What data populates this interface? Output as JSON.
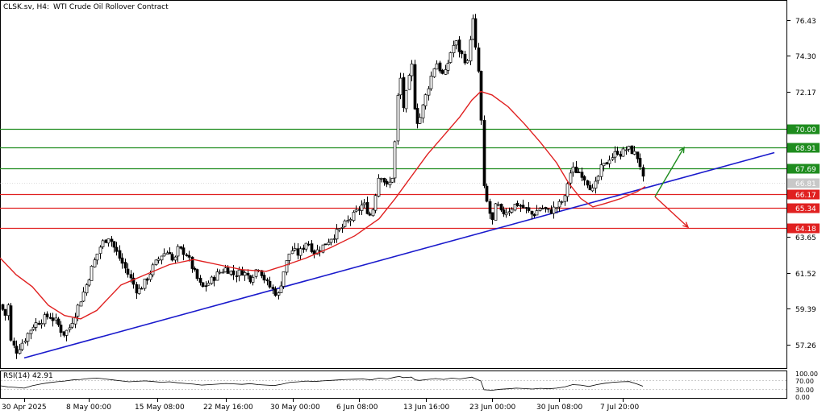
{
  "header": {
    "symbol": "CLSK.sv, H4:",
    "name": "WTI Crude Oil Rollover Contract"
  },
  "colors": {
    "bull_candle": "#ffffff",
    "bear_candle": "#000000",
    "ma": "#e02020",
    "trendline": "#1a1acc",
    "resistance": "#1e8c1e",
    "support": "#e02020",
    "arrow_up": "#1e8c1e",
    "arrow_down": "#e02020",
    "rsi": "#000000"
  },
  "price_axis": {
    "labels": [
      "76.43",
      "74.30",
      "72.17",
      "63.65",
      "61.52",
      "59.39",
      "57.26"
    ]
  },
  "levels": [
    {
      "price": 70.0,
      "label": "70.00",
      "color": "#1e8c1e",
      "kind": "resistance"
    },
    {
      "price": 68.91,
      "label": "68.91",
      "color": "#1e8c1e",
      "kind": "resistance"
    },
    {
      "price": 67.69,
      "label": "67.69",
      "color": "#1e8c1e",
      "kind": "resistance"
    },
    {
      "price": 66.17,
      "label": "66.17",
      "color": "#e02020",
      "kind": "support"
    },
    {
      "price": 65.34,
      "label": "65.34",
      "color": "#e02020",
      "kind": "support"
    },
    {
      "price": 64.18,
      "label": "64.18",
      "color": "#e02020",
      "kind": "support"
    }
  ],
  "current_price": {
    "label": "66.81"
  },
  "time_axis": {
    "labels": [
      "30 Apr 2025",
      "8 May 00:00",
      "15 May 08:00",
      "22 May 16:00",
      "30 May 00:00",
      "6 Jun 08:00",
      "13 Jun 16:00",
      "23 Jun 00:00",
      "30 Jun 08:00",
      "7 Jul 20:00"
    ]
  },
  "rsi": {
    "title": "RSI(14) 42.91",
    "axis_labels": [
      "100.00",
      "70.00",
      "30.00",
      "0.00"
    ]
  },
  "chart_data": {
    "type": "candlestick",
    "title": "CLSK.sv, H4: WTI Crude Oil Rollover Contract",
    "ylim": [
      55.9,
      77.5
    ],
    "x_index_range": [
      0,
      234
    ],
    "close_path": [
      [
        0,
        60.2
      ],
      [
        5,
        58.8
      ],
      [
        10,
        59.6
      ],
      [
        13,
        57.5
      ],
      [
        20,
        56.9
      ],
      [
        30,
        57.6
      ],
      [
        40,
        58.4
      ],
      [
        50,
        58.7
      ],
      [
        60,
        59.0
      ],
      [
        70,
        58.6
      ],
      [
        78,
        57.9
      ],
      [
        85,
        58.2
      ],
      [
        95,
        59.4
      ],
      [
        105,
        60.6
      ],
      [
        115,
        62.0
      ],
      [
        125,
        63.2
      ],
      [
        135,
        63.7
      ],
      [
        140,
        63.1
      ],
      [
        150,
        62.2
      ],
      [
        160,
        61.3
      ],
      [
        170,
        60.4
      ],
      [
        180,
        61.0
      ],
      [
        190,
        61.9
      ],
      [
        200,
        62.6
      ],
      [
        210,
        62.8
      ],
      [
        215,
        62.0
      ],
      [
        220,
        62.9
      ],
      [
        230,
        62.7
      ],
      [
        240,
        61.6
      ],
      [
        250,
        60.6
      ],
      [
        260,
        61.0
      ],
      [
        270,
        61.5
      ],
      [
        280,
        61.8
      ],
      [
        290,
        61.4
      ],
      [
        300,
        61.6
      ],
      [
        310,
        61.2
      ],
      [
        320,
        61.9
      ],
      [
        330,
        60.9
      ],
      [
        340,
        60.4
      ],
      [
        345,
        60.2
      ],
      [
        350,
        61.4
      ],
      [
        360,
        62.9
      ],
      [
        370,
        62.6
      ],
      [
        380,
        63.4
      ],
      [
        390,
        62.7
      ],
      [
        400,
        63.1
      ],
      [
        410,
        63.6
      ],
      [
        420,
        64.0
      ],
      [
        430,
        64.5
      ],
      [
        440,
        65.0
      ],
      [
        450,
        65.6
      ],
      [
        460,
        64.8
      ],
      [
        470,
        67.5
      ],
      [
        480,
        66.5
      ],
      [
        486,
        67.2
      ],
      [
        490,
        69.5
      ],
      [
        495,
        73.6
      ],
      [
        500,
        71.2
      ],
      [
        505,
        72.5
      ],
      [
        510,
        73.8
      ],
      [
        515,
        70.4
      ],
      [
        520,
        70.6
      ],
      [
        530,
        72.4
      ],
      [
        540,
        74.0
      ],
      [
        550,
        73.0
      ],
      [
        560,
        74.8
      ],
      [
        565,
        75.1
      ],
      [
        570,
        74.5
      ],
      [
        580,
        73.8
      ],
      [
        585,
        76.9
      ],
      [
        590,
        74.4
      ],
      [
        596,
        72.3
      ],
      [
        597,
        67.6
      ],
      [
        600,
        66.4
      ],
      [
        605,
        65.3
      ],
      [
        610,
        64.5
      ],
      [
        615,
        65.7
      ],
      [
        620,
        65.0
      ],
      [
        630,
        65.2
      ],
      [
        640,
        65.6
      ],
      [
        650,
        65.3
      ],
      [
        660,
        64.9
      ],
      [
        670,
        65.4
      ],
      [
        680,
        65.1
      ],
      [
        690,
        65.4
      ],
      [
        700,
        65.9
      ],
      [
        705,
        67.3
      ],
      [
        710,
        67.6
      ],
      [
        720,
        67.4
      ],
      [
        730,
        66.7
      ],
      [
        735,
        66.3
      ],
      [
        740,
        67.0
      ],
      [
        745,
        67.7
      ],
      [
        750,
        67.9
      ],
      [
        755,
        68.3
      ],
      [
        760,
        68.4
      ],
      [
        765,
        68.7
      ],
      [
        770,
        68.5
      ],
      [
        775,
        68.8
      ],
      [
        780,
        68.8
      ],
      [
        785,
        68.6
      ],
      [
        790,
        68.3
      ],
      [
        795,
        67.6
      ],
      [
        797,
        66.8
      ]
    ],
    "series": [
      {
        "name": "",
        "type": "ma",
        "points": [
          [
            0,
            62.4
          ],
          [
            20,
            61.4
          ],
          [
            40,
            60.7
          ],
          [
            60,
            59.6
          ],
          [
            80,
            59.0
          ],
          [
            100,
            58.8
          ],
          [
            120,
            59.3
          ],
          [
            150,
            60.8
          ],
          [
            180,
            61.4
          ],
          [
            210,
            62.0
          ],
          [
            240,
            62.3
          ],
          [
            270,
            62.0
          ],
          [
            300,
            61.7
          ],
          [
            330,
            61.6
          ],
          [
            350,
            61.9
          ],
          [
            380,
            62.4
          ],
          [
            410,
            63.0
          ],
          [
            440,
            63.7
          ],
          [
            470,
            64.7
          ],
          [
            490,
            65.9
          ],
          [
            510,
            67.2
          ],
          [
            530,
            68.5
          ],
          [
            550,
            69.6
          ],
          [
            570,
            70.7
          ],
          [
            585,
            71.7
          ],
          [
            596,
            72.2
          ],
          [
            610,
            72.0
          ],
          [
            630,
            71.3
          ],
          [
            650,
            70.3
          ],
          [
            670,
            69.2
          ],
          [
            690,
            68.0
          ],
          [
            705,
            66.8
          ],
          [
            720,
            65.9
          ],
          [
            735,
            65.4
          ],
          [
            750,
            65.6
          ],
          [
            770,
            65.9
          ],
          [
            790,
            66.3
          ],
          [
            800,
            66.6
          ]
        ]
      },
      {
        "name": "",
        "type": "trendline",
        "points": [
          [
            30,
            56.5
          ],
          [
            960,
            68.6
          ]
        ]
      },
      {
        "name": "",
        "type": "arrow",
        "points": [
          [
            812,
            66.0
          ],
          [
            848,
            68.9
          ]
        ]
      },
      {
        "name": "",
        "type": "arrow",
        "points": [
          [
            812,
            66.0
          ],
          [
            853,
            64.2
          ]
        ]
      }
    ],
    "rsi_series": {
      "name": "RSI(14)",
      "ylim": [
        0,
        100
      ],
      "points": [
        [
          0,
          45
        ],
        [
          10,
          40
        ],
        [
          20,
          38
        ],
        [
          30,
          35
        ],
        [
          40,
          45
        ],
        [
          50,
          52
        ],
        [
          60,
          58
        ],
        [
          70,
          62
        ],
        [
          80,
          65
        ],
        [
          90,
          70
        ],
        [
          100,
          72
        ],
        [
          110,
          76
        ],
        [
          120,
          78
        ],
        [
          130,
          74
        ],
        [
          140,
          70
        ],
        [
          150,
          66
        ],
        [
          160,
          62
        ],
        [
          170,
          64
        ],
        [
          180,
          66
        ],
        [
          190,
          63
        ],
        [
          200,
          60
        ],
        [
          210,
          62
        ],
        [
          220,
          58
        ],
        [
          230,
          55
        ],
        [
          240,
          52
        ],
        [
          250,
          48
        ],
        [
          260,
          50
        ],
        [
          270,
          52
        ],
        [
          280,
          55
        ],
        [
          290,
          53
        ],
        [
          300,
          51
        ],
        [
          310,
          54
        ],
        [
          320,
          50
        ],
        [
          330,
          48
        ],
        [
          340,
          46
        ],
        [
          350,
          52
        ],
        [
          360,
          60
        ],
        [
          370,
          62
        ],
        [
          380,
          65
        ],
        [
          390,
          63
        ],
        [
          400,
          66
        ],
        [
          410,
          68
        ],
        [
          420,
          70
        ],
        [
          430,
          72
        ],
        [
          440,
          73
        ],
        [
          450,
          74
        ],
        [
          460,
          70
        ],
        [
          470,
          78
        ],
        [
          480,
          74
        ],
        [
          490,
          82
        ],
        [
          495,
          85
        ],
        [
          500,
          80
        ],
        [
          510,
          82
        ],
        [
          515,
          70
        ],
        [
          520,
          68
        ],
        [
          530,
          72
        ],
        [
          540,
          76
        ],
        [
          550,
          72
        ],
        [
          560,
          78
        ],
        [
          570,
          74
        ],
        [
          585,
          82
        ],
        [
          590,
          74
        ],
        [
          596,
          66
        ],
        [
          600,
          28
        ],
        [
          610,
          26
        ],
        [
          620,
          30
        ],
        [
          630,
          32
        ],
        [
          640,
          35
        ],
        [
          650,
          33
        ],
        [
          660,
          31
        ],
        [
          670,
          34
        ],
        [
          680,
          32
        ],
        [
          690,
          35
        ],
        [
          700,
          40
        ],
        [
          710,
          50
        ],
        [
          720,
          48
        ],
        [
          730,
          42
        ],
        [
          740,
          50
        ],
        [
          750,
          56
        ],
        [
          760,
          60
        ],
        [
          770,
          62
        ],
        [
          780,
          63
        ],
        [
          790,
          52
        ],
        [
          797,
          43
        ]
      ]
    }
  }
}
